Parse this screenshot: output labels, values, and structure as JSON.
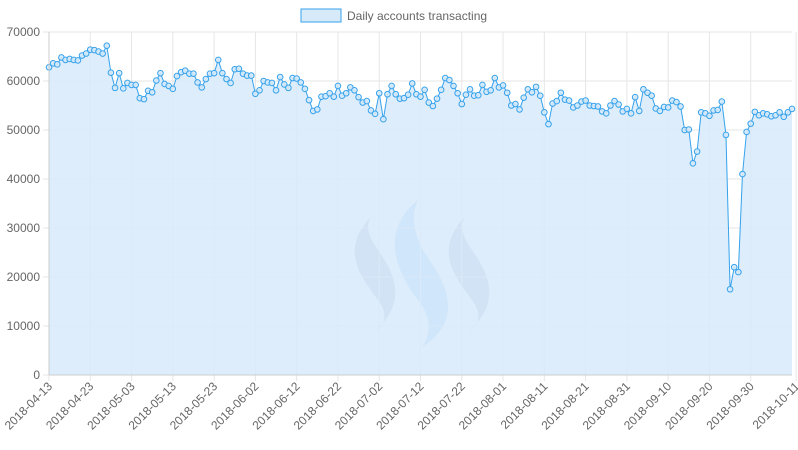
{
  "chart_data": {
    "type": "area",
    "title": "",
    "xlabel": "",
    "ylabel": "",
    "legend": {
      "label": "Daily accounts transacting",
      "position": "top"
    },
    "ylim": [
      0,
      70000
    ],
    "y_ticks": [
      0,
      10000,
      20000,
      30000,
      40000,
      50000,
      60000,
      70000
    ],
    "x_tick_labels": [
      "2018-04-13",
      "2018-04-23",
      "2018-05-03",
      "2018-05-13",
      "2018-05-23",
      "2018-06-02",
      "2018-06-12",
      "2018-06-22",
      "2018-07-02",
      "2018-07-12",
      "2018-07-22",
      "2018-08-01",
      "2018-08-11",
      "2018-08-21",
      "2018-08-31",
      "2018-09-10",
      "2018-09-20",
      "2018-09-30",
      "2018-10-11"
    ],
    "grid": true,
    "colors": {
      "line": "#36a2eb",
      "fill": "#d7eafa",
      "watermark_dark": "#8fa8c9",
      "watermark_light": "#8ec3f5"
    },
    "watermark": "steem-logo",
    "series": [
      {
        "name": "Daily accounts transacting",
        "start_date": "2018-04-13",
        "values": [
          62800,
          63600,
          63400,
          64800,
          64300,
          64500,
          64300,
          64200,
          65200,
          65600,
          66400,
          66300,
          66000,
          65600,
          67200,
          61700,
          58600,
          61600,
          58500,
          59600,
          59200,
          59200,
          56500,
          56300,
          58000,
          57700,
          60100,
          61600,
          59400,
          59000,
          58400,
          61000,
          61800,
          62100,
          61500,
          61500,
          59700,
          58700,
          60400,
          61500,
          61600,
          64300,
          61600,
          60400,
          59600,
          62400,
          62500,
          61500,
          61100,
          61100,
          57400,
          58100,
          60000,
          59700,
          59600,
          58100,
          60800,
          59300,
          58600,
          60600,
          60500,
          59700,
          58400,
          56100,
          53900,
          54200,
          56800,
          56900,
          57500,
          56800,
          59000,
          57000,
          57500,
          58700,
          58100,
          56700,
          55600,
          55900,
          54000,
          53300,
          57500,
          52200,
          57300,
          59000,
          57300,
          56400,
          56500,
          57200,
          59500,
          57300,
          56800,
          58200,
          55600,
          54900,
          56400,
          58200,
          60600,
          60200,
          59000,
          57500,
          55300,
          57200,
          58300,
          57000,
          57100,
          59200,
          57800,
          58100,
          60600,
          58700,
          59100,
          57600,
          55000,
          55300,
          54200,
          56600,
          58300,
          57700,
          58800,
          57000,
          53600,
          51200,
          55400,
          55900,
          57600,
          56200,
          56000,
          54600,
          55000,
          55800,
          56000,
          55000,
          54900,
          54800,
          53800,
          53400,
          55000,
          55900,
          55200,
          53800,
          54300,
          53400,
          56700,
          53900,
          58300,
          57600,
          57000,
          54400,
          53900,
          54700,
          54600,
          56000,
          55700,
          54800,
          50000,
          50100,
          43200,
          45600,
          53600,
          53400,
          52900,
          54000,
          54100,
          55800,
          49000,
          17500,
          22000,
          21000,
          41000,
          49600,
          51300,
          53700,
          53000,
          53400,
          53200,
          52800,
          53000,
          53600,
          52700,
          53600,
          54300
        ]
      }
    ]
  }
}
